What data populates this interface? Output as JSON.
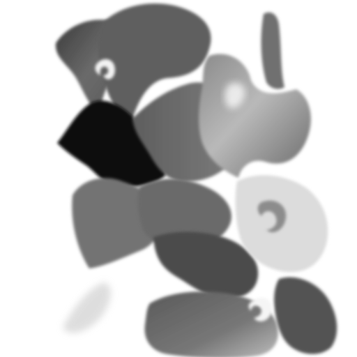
{
  "scene": {
    "kind": "abstract-grayscale-fluid-marbling",
    "background_color": "#ffffff",
    "palette": {
      "black": "#0d0d0d",
      "dark_gray": "#454545",
      "mid_gray": "#6f6f6f",
      "light_gray": "#9a9a9a",
      "pale_gray": "#c8c8c8",
      "white": "#ffffff"
    }
  }
}
